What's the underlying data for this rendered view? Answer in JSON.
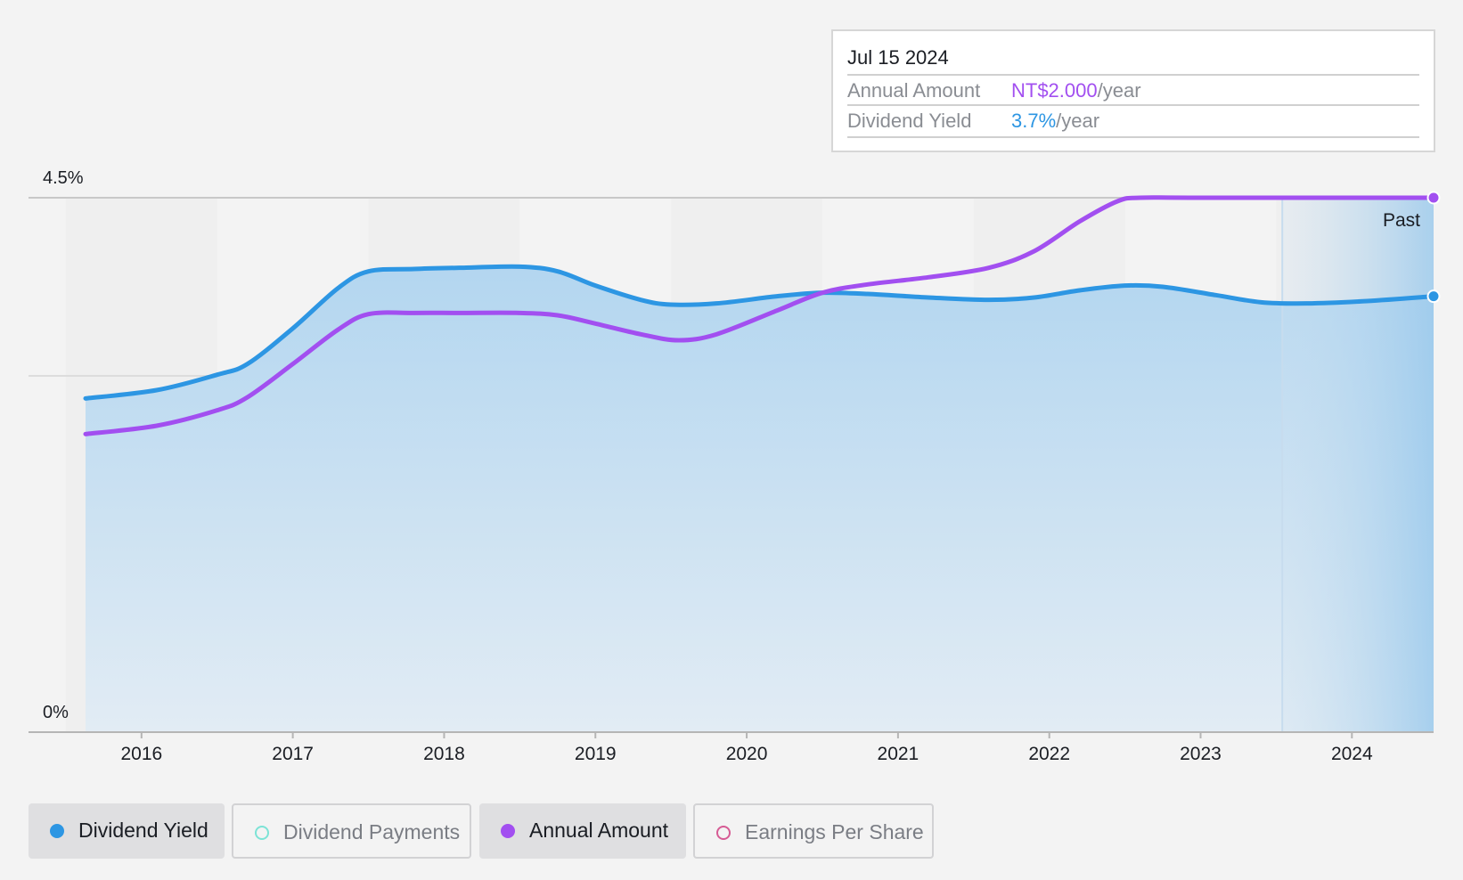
{
  "tooltip": {
    "date": "Jul 15 2024",
    "rows": [
      {
        "label": "Annual Amount",
        "value": "NT$2.000",
        "unit": "/year"
      },
      {
        "label": "Dividend Yield",
        "value": "3.7%",
        "unit": "/year"
      }
    ]
  },
  "legend": [
    {
      "label": "Dividend Yield",
      "active": true
    },
    {
      "label": "Dividend Payments",
      "active": false
    },
    {
      "label": "Annual Amount",
      "active": true
    },
    {
      "label": "Earnings Per Share",
      "active": false
    }
  ],
  "colors": {
    "dividend_yield": "#2d96e3",
    "dividend_payments": "#7ce3d6",
    "annual_amount": "#a24ff0",
    "earnings_per_share": "#d65b94",
    "gridline": "#dcdcdc",
    "axis": "#b5b5b5"
  },
  "chart_data": {
    "type": "line",
    "xlabel": "",
    "ylabel": "",
    "x_ticks": [
      "2016",
      "2017",
      "2018",
      "2019",
      "2020",
      "2021",
      "2022",
      "2023",
      "2024"
    ],
    "y_tick_labels": [
      "0%",
      "4.5%"
    ],
    "y_range": [
      0,
      4.5
    ],
    "x_range": [
      2015.63,
      2024.54
    ],
    "past_label": "Past",
    "past_region_start": 2023.54,
    "grid": true,
    "legend_position": "bottom-left",
    "series": [
      {
        "name": "Dividend Yield",
        "fill": true,
        "points": [
          [
            2015.63,
            2.81
          ],
          [
            2016.1,
            2.88
          ],
          [
            2016.5,
            3.01
          ],
          [
            2016.7,
            3.1
          ],
          [
            2017.0,
            3.4
          ],
          [
            2017.3,
            3.74
          ],
          [
            2017.5,
            3.88
          ],
          [
            2017.8,
            3.9
          ],
          [
            2018.1,
            3.91
          ],
          [
            2018.5,
            3.92
          ],
          [
            2018.75,
            3.88
          ],
          [
            2019.0,
            3.76
          ],
          [
            2019.3,
            3.64
          ],
          [
            2019.5,
            3.6
          ],
          [
            2019.8,
            3.61
          ],
          [
            2020.2,
            3.67
          ],
          [
            2020.5,
            3.7
          ],
          [
            2020.8,
            3.69
          ],
          [
            2021.2,
            3.66
          ],
          [
            2021.6,
            3.64
          ],
          [
            2021.9,
            3.66
          ],
          [
            2022.2,
            3.72
          ],
          [
            2022.5,
            3.76
          ],
          [
            2022.75,
            3.75
          ],
          [
            2023.1,
            3.68
          ],
          [
            2023.4,
            3.62
          ],
          [
            2023.7,
            3.61
          ],
          [
            2024.1,
            3.63
          ],
          [
            2024.54,
            3.67
          ]
        ]
      },
      {
        "name": "Annual Amount",
        "fill": false,
        "points": [
          [
            2015.63,
            2.51
          ],
          [
            2016.1,
            2.58
          ],
          [
            2016.5,
            2.71
          ],
          [
            2016.7,
            2.82
          ],
          [
            2017.0,
            3.1
          ],
          [
            2017.3,
            3.39
          ],
          [
            2017.5,
            3.52
          ],
          [
            2017.8,
            3.53
          ],
          [
            2018.1,
            3.53
          ],
          [
            2018.5,
            3.53
          ],
          [
            2018.75,
            3.51
          ],
          [
            2019.0,
            3.44
          ],
          [
            2019.3,
            3.35
          ],
          [
            2019.55,
            3.3
          ],
          [
            2019.8,
            3.35
          ],
          [
            2020.2,
            3.55
          ],
          [
            2020.5,
            3.7
          ],
          [
            2020.8,
            3.77
          ],
          [
            2021.2,
            3.83
          ],
          [
            2021.6,
            3.91
          ],
          [
            2021.9,
            4.05
          ],
          [
            2022.2,
            4.3
          ],
          [
            2022.45,
            4.47
          ],
          [
            2022.6,
            4.5
          ],
          [
            2023.0,
            4.5
          ],
          [
            2024.54,
            4.5
          ]
        ]
      }
    ]
  }
}
